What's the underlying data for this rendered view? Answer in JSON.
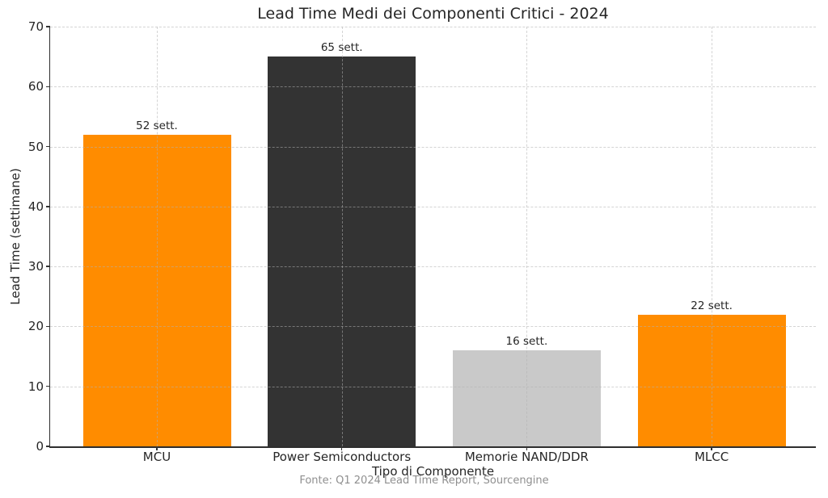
{
  "chart_data": {
    "type": "bar",
    "title": "Lead Time Medi dei Componenti Critici - 2024",
    "xlabel": "Tipo di Componente",
    "ylabel": "Lead Time (settimane)",
    "footer": "Fonte: Q1 2024 Lead Time Report, Sourcengine",
    "categories": [
      "MCU",
      "Power Semiconductors",
      "Memorie NAND/DDR",
      "MLCC"
    ],
    "values": [
      52,
      65,
      16,
      22
    ],
    "value_labels": [
      "52 sett.",
      "65 sett.",
      "16 sett.",
      "22 sett."
    ],
    "bar_colors": [
      "#FF8C00",
      "#333333",
      "#C9C9C9",
      "#FF8C00"
    ],
    "yticks": [
      0,
      10,
      20,
      30,
      40,
      50,
      60,
      70
    ],
    "ylim": [
      0,
      70
    ],
    "grid_style": "dashed",
    "grid_over_bars": true,
    "legend": "none",
    "colors": {
      "accent_orange": "#FF8C00",
      "dark": "#333333",
      "light_gray": "#C9C9C9",
      "text": "#262626",
      "footer_text": "#8f8f8f"
    }
  }
}
